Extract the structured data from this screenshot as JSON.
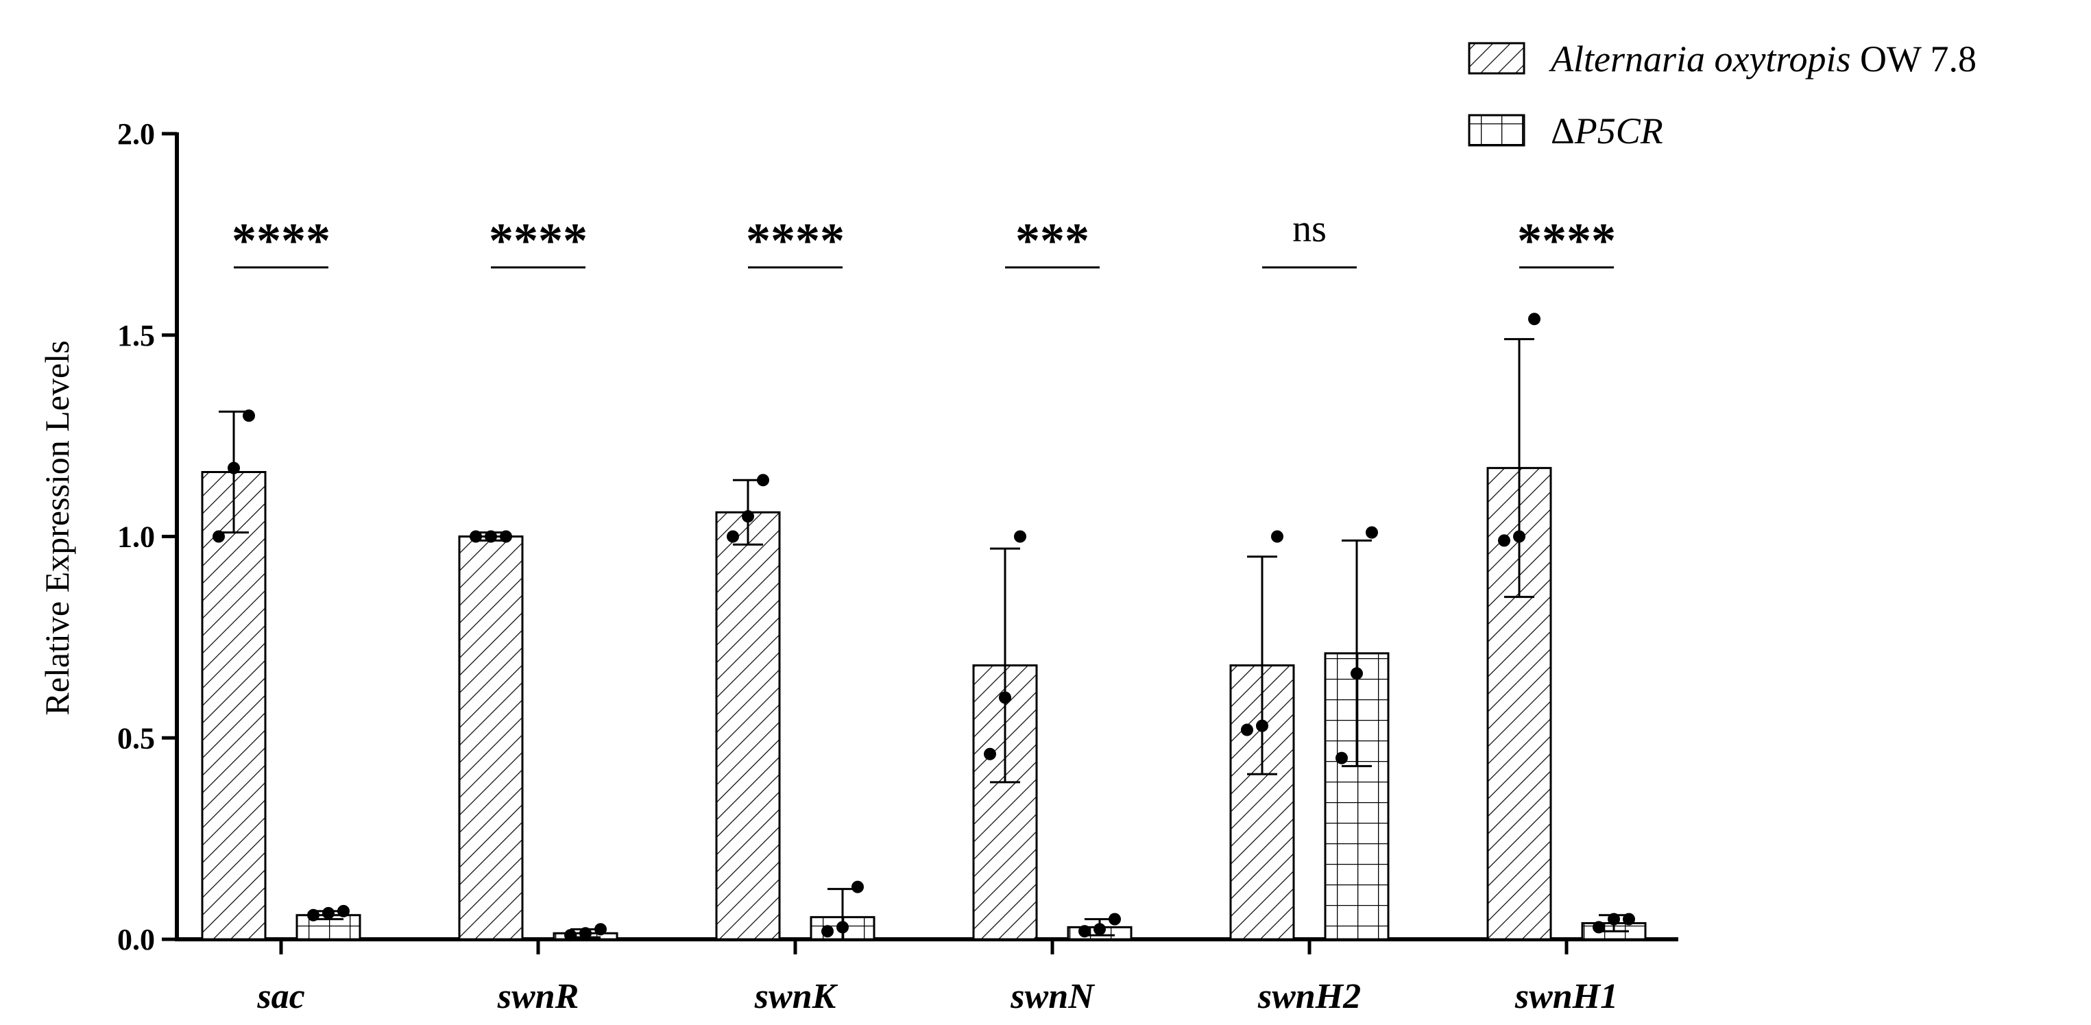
{
  "chart_data": {
    "type": "bar",
    "title": "",
    "xlabel": "",
    "ylabel": "Relative Expression Levels",
    "ylim": [
      0,
      2.0
    ],
    "yticks": [
      "0.0",
      "0.5",
      "1.0",
      "1.5",
      "2.0"
    ],
    "categories": [
      "sac",
      "swnR",
      "swnK",
      "swnN",
      "swnH2",
      "swnH1"
    ],
    "series": [
      {
        "name": "Alternaria oxytropis OW 7.8",
        "name_italic": "Alternaria oxytropis",
        "name_suffix": " OW 7.8",
        "pattern": "diagonal-hatch",
        "values": [
          1.16,
          1.0,
          1.06,
          0.68,
          0.68,
          1.17
        ],
        "errors": [
          0.15,
          0.01,
          0.08,
          0.29,
          0.27,
          0.32
        ],
        "points": [
          [
            1.0,
            1.17,
            1.3
          ],
          [
            1.0,
            1.0,
            1.0
          ],
          [
            1.0,
            1.05,
            1.14
          ],
          [
            0.46,
            0.6,
            1.0
          ],
          [
            0.52,
            0.53,
            1.0
          ],
          [
            0.99,
            1.0,
            1.54
          ]
        ]
      },
      {
        "name": "ΔP5CR",
        "name_prefix": "Δ",
        "name_italic": "P5CR",
        "pattern": "grid",
        "values": [
          0.06,
          0.015,
          0.055,
          0.03,
          0.71,
          0.04
        ],
        "errors": [
          0.01,
          0.01,
          0.07,
          0.02,
          0.28,
          0.02
        ],
        "points": [
          [
            0.06,
            0.065,
            0.07
          ],
          [
            0.01,
            0.015,
            0.025
          ],
          [
            0.02,
            0.03,
            0.13
          ],
          [
            0.02,
            0.025,
            0.05
          ],
          [
            0.45,
            0.66,
            1.01
          ],
          [
            0.03,
            0.05,
            0.05
          ]
        ]
      }
    ],
    "significance": [
      "****",
      "****",
      "****",
      "***",
      "ns",
      "****"
    ],
    "legend_position": "top-right",
    "grid": false
  }
}
